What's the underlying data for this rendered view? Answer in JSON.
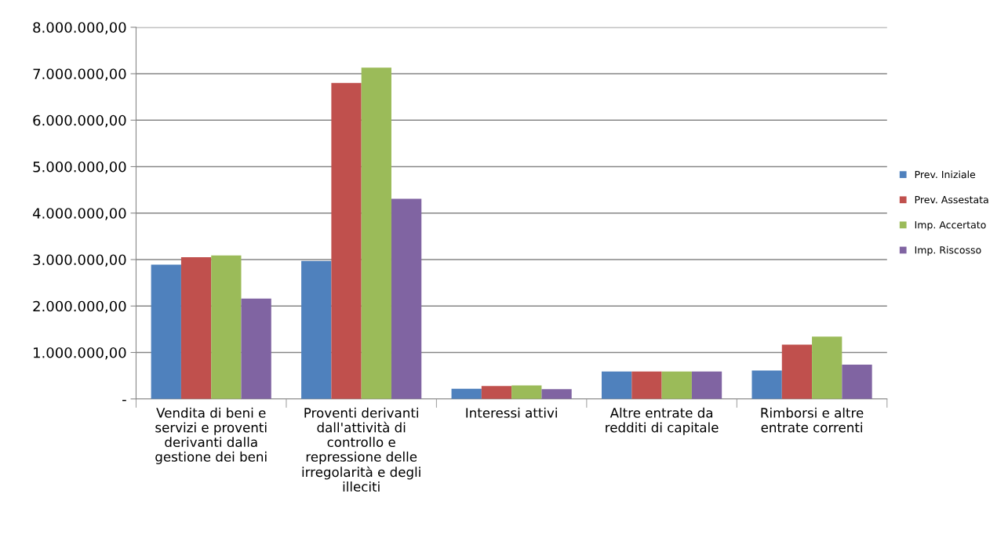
{
  "chart_data": {
    "type": "bar",
    "categories": [
      "Vendita di beni e\nservizi e proventi\nderivanti dalla\ngestione dei beni",
      "Proventi derivanti\ndall'attività di\ncontrollo e\nrepressione delle\nirregolarità e degli\nilleciti",
      "Interessi attivi",
      "Altre entrate da\nredditi di capitale",
      "Rimborsi e altre\nentrate correnti"
    ],
    "series": [
      {
        "name": "Prev. Iniziale",
        "color": "#4f81bd",
        "values": [
          2890000,
          2970000,
          220000,
          590000,
          610000
        ]
      },
      {
        "name": "Prev. Assestata",
        "color": "#c0504d",
        "values": [
          3050000,
          6800000,
          280000,
          590000,
          1170000
        ]
      },
      {
        "name": "Imp. Accertato",
        "color": "#9bbb59",
        "values": [
          3090000,
          7130000,
          290000,
          590000,
          1340000
        ]
      },
      {
        "name": "Imp. Riscosso",
        "color": "#8064a2",
        "values": [
          2160000,
          4310000,
          210000,
          590000,
          740000
        ]
      }
    ],
    "ylim": [
      0,
      8000000
    ],
    "yticks": [
      {
        "value": 0,
        "label": "-"
      },
      {
        "value": 1000000,
        "label": "1.000.000,00"
      },
      {
        "value": 2000000,
        "label": "2.000.000,00"
      },
      {
        "value": 3000000,
        "label": "3.000.000,00"
      },
      {
        "value": 4000000,
        "label": "4.000.000,00"
      },
      {
        "value": 5000000,
        "label": "5.000.000,00"
      },
      {
        "value": 6000000,
        "label": "6.000.000,00"
      },
      {
        "value": 7000000,
        "label": "7.000.000,00"
      },
      {
        "value": 8000000,
        "label": "8.000.000,00"
      }
    ],
    "grid": "y",
    "legend": "right"
  }
}
